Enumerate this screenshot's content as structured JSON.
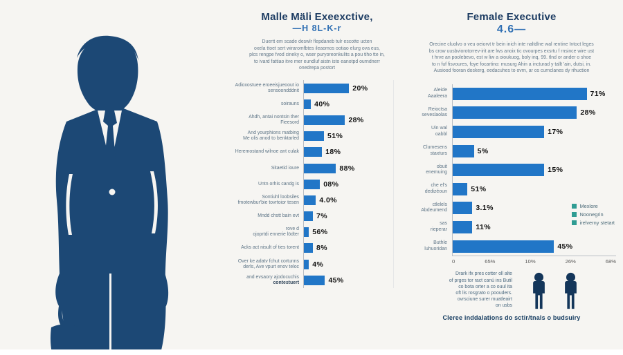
{
  "colors": {
    "background": "#f6f5f2",
    "silhouette_navy": "#1c4875",
    "bar_blue": "#2176c7",
    "title_navy": "#1e3d63",
    "accent_blue": "#2f6fb3",
    "legend_teal": "#2f9c93",
    "pictogram_navy": "#14365a"
  },
  "male_section": {
    "title": "Malle Mäli Exeexctive,",
    "subtitle": "—H 8L-K-r",
    "description": "Duertt em scade deswlr flepdaneb tulr escotte ucten\noxela ttoet sert wiraromfbtes ileaomos ootiao elurg ova eus,\nplcs rengpe fvod cineky o, wser puryoreonkulits a pou tiho tte in,\nto ivard fattiao itve mer eundluf aistn isto eanotpd ourndnerr\nonedrepa postort"
  },
  "female_section": {
    "title": "Female Executive",
    "subtitle": "4.6—",
    "description": "Orecine cluolvo o veu oeiorvt tr bein inich inte naltdlne wal rentine Intoct leges\nbs crow uusbviorotorrev-irit are lws anoix tic ovourpes exsrtu f rnsince wire ust\nt hrve an poolebevo, est w liw a oioukuog, boly inq, 99. tlnd or ander o shoe\nto n fuf fisvoures, foye focartino: musurg Ahin a incturad y tallt 'ain, dutsi, in.\nAusiood fooran doskerg, eedacuhes to ovrn, ar os curnclanes dy rihuction"
  },
  "footer": {
    "note": "Drark ifx pres cotter oll alte\nof prges tor ract canú ins Butil\nco bota orter a co ouul ita\noft lis rosgrato o poouders.\novrsciune surer muatleairt\non usbs",
    "caption": "Cleree inddalations do sctir/tnals o budsuiry"
  },
  "chart_data": [
    {
      "type": "bar",
      "orientation": "horizontal",
      "title": "Malle Mäli Exeexctive,",
      "xlabel": "",
      "grid": false,
      "rows": [
        {
          "label": "Adioxostuee eroeeisjueoout io\nsensoondddnit",
          "value": "20%",
          "len": 45
        },
        {
          "label": "soirauns",
          "value": "40%",
          "len": 7
        },
        {
          "label": "Ahdh, antai nontsin ther\nFieesord",
          "value": "28%",
          "len": 41
        },
        {
          "label": "And yourphions matbing\nMe olis anod to benktarled",
          "value": "51%",
          "len": 20
        },
        {
          "label": "Heremostand wilnoe ant culak",
          "value": "18%",
          "len": 18
        },
        {
          "label": "Sitaetid ioure",
          "value": "88%",
          "len": 32
        },
        {
          "label": "Untn orhis candg is",
          "value": "08%",
          "len": 16
        },
        {
          "label": "Sontiuhl loobsiles\nfmotewbur'bie tovrtoior tesen",
          "value": "4.0%",
          "len": 12
        },
        {
          "label": "Mndd chstt bain evt",
          "value": "7%",
          "len": 9
        },
        {
          "label": "rove d\nojoprtdi ennerie lödter",
          "value": "56%",
          "len": 5
        },
        {
          "label": "Acks act nisult of ties torent",
          "value": "8%",
          "len": 9
        },
        {
          "label": "Over ke adatv fchut cortunns\nderls, Ave vpurt enov teloc",
          "value": "4%",
          "len": 5
        },
        {
          "label": "and evsaory ajodocuchis",
          "label_bold": "contestuert",
          "value": "45%",
          "len": 21
        }
      ]
    },
    {
      "type": "bar",
      "orientation": "horizontal",
      "title": "Female Executive",
      "xlabel": "",
      "x_ticks": [
        "0",
        "65%",
        "10%",
        "26%",
        "68%"
      ],
      "legend": [
        "Mexlore",
        "Noonegrin",
        "irelverny stetart"
      ],
      "legend_position": "inside-right",
      "rows": [
        {
          "label": "Aleide\nAaaleera",
          "value": "71%",
          "len": 82
        },
        {
          "label": "Reioctsa\nseveslaolas",
          "value": "28%",
          "len": 76
        },
        {
          "label": "Uin wal\noabbl",
          "value": "17%",
          "len": 56
        },
        {
          "label": "Clumesens\nstaxturs",
          "value": "5%",
          "len": 13
        },
        {
          "label": "obuit\nenemuing",
          "value": "15%",
          "len": 56
        },
        {
          "label": "che el's\ndedizéoun",
          "value": "51%",
          "len": 9
        },
        {
          "label": "ctlelels\nAbdeumend",
          "value": "3.1%",
          "len": 12
        },
        {
          "label": "sas\nrieperar",
          "value": "11%",
          "len": 12
        },
        {
          "label": "Buthle\nluhuoridan",
          "value": "45%",
          "len": 62
        }
      ]
    }
  ]
}
